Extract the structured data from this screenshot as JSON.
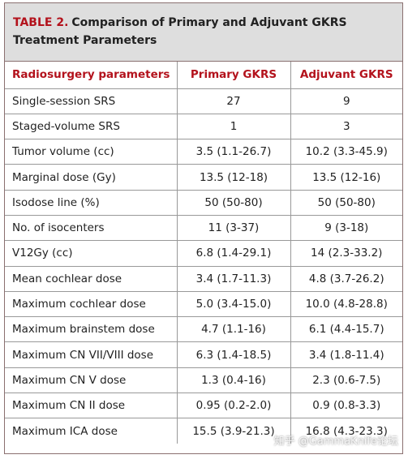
{
  "title": {
    "label": "TABLE 2.",
    "text": "Comparison of Primary and Adjuvant GKRS Treatment Parameters"
  },
  "table": {
    "header": [
      "Radiosurgery parameters",
      "Primary GKRS",
      "Adjuvant GKRS"
    ],
    "rows": [
      [
        "Single-session SRS",
        "27",
        "9"
      ],
      [
        "Staged-volume SRS",
        "1",
        "3"
      ],
      [
        "Tumor volume (cc)",
        "3.5 (1.1-26.7)",
        "10.2 (3.3-45.9)"
      ],
      [
        "Marginal dose (Gy)",
        "13.5 (12-18)",
        "13.5 (12-16)"
      ],
      [
        "Isodose line (%)",
        "50 (50-80)",
        "50 (50-80)"
      ],
      [
        "No. of isocenters",
        "11 (3-37)",
        "9 (3-18)"
      ],
      [
        "V12Gy (cc)",
        "6.8 (1.4-29.1)",
        "14 (2.3-33.2)"
      ],
      [
        "Mean cochlear dose",
        "3.4 (1.7-11.3)",
        "4.8 (3.7-26.2)"
      ],
      [
        "Maximum cochlear dose",
        "5.0 (3.4-15.0)",
        "10.0 (4.8-28.8)"
      ],
      [
        "Maximum brainstem dose",
        "4.7 (1.1-16)",
        "6.1 (4.4-15.7)"
      ],
      [
        "Maximum CN VII/VIII dose",
        "6.3 (1.4-18.5)",
        "3.4 (1.8-11.4)"
      ],
      [
        "Maximum CN V dose",
        "1.3 (0.4-16)",
        "2.3 (0.6-7.5)"
      ],
      [
        "Maximum CN II dose",
        "0.95 (0.2-2.0)",
        "0.9 (0.8-3.3)"
      ],
      [
        "Maximum ICA dose",
        "15.5 (3.9-21.3)",
        "16.8 (4.3-23.3)"
      ]
    ]
  },
  "watermark": "知乎 @GammaKnife论坛"
}
